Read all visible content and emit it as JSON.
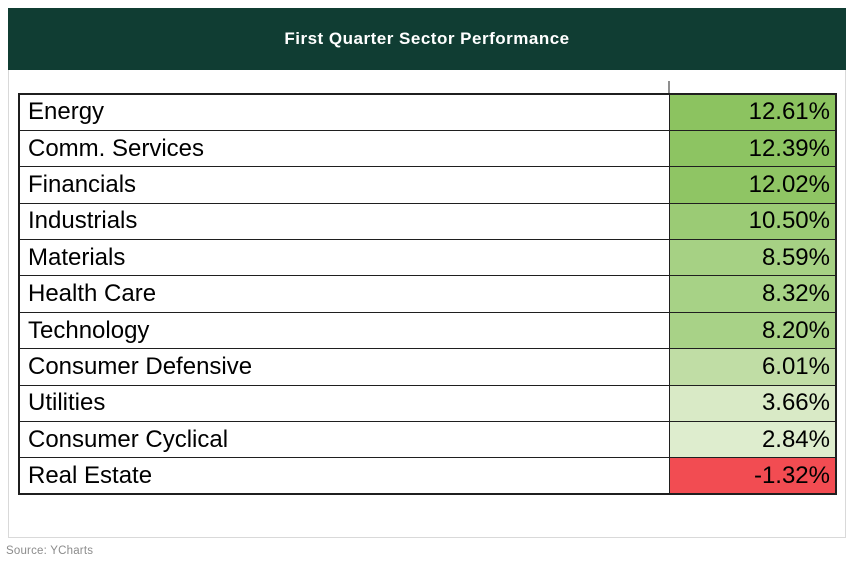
{
  "chart": {
    "title": "First Quarter Sector Performance",
    "source": "Source: YCharts"
  },
  "colors": {
    "header_bg": "#103d33",
    "title_text": "#ffffff",
    "frame_border": "#d9d9d9",
    "table_border": "#1f1f1f",
    "positive_strong": "#8cc360",
    "positive_weak": "#deedce",
    "negative": "#f24c52"
  },
  "chart_data": {
    "type": "table",
    "title": "First Quarter Sector Performance",
    "source": "Source: YCharts",
    "value_format": "percent",
    "color_scale": "green (high positive) to light green (low positive), red (negative)",
    "rows": [
      {
        "label": "Energy",
        "value": "12.61%",
        "value_num": 12.61,
        "cell_color": "#8cc360"
      },
      {
        "label": "Comm. Services",
        "value": "12.39%",
        "value_num": 12.39,
        "cell_color": "#8dc462"
      },
      {
        "label": "Financials",
        "value": "12.02%",
        "value_num": 12.02,
        "cell_color": "#8fc564"
      },
      {
        "label": "Industrials",
        "value": "10.50%",
        "value_num": 10.5,
        "cell_color": "#9bcb75"
      },
      {
        "label": "Materials",
        "value": "8.59%",
        "value_num": 8.59,
        "cell_color": "#a6d184"
      },
      {
        "label": "Health Care",
        "value": "8.32%",
        "value_num": 8.32,
        "cell_color": "#a7d286"
      },
      {
        "label": "Technology",
        "value": "8.20%",
        "value_num": 8.2,
        "cell_color": "#a8d287"
      },
      {
        "label": "Consumer Defensive",
        "value": "6.01%",
        "value_num": 6.01,
        "cell_color": "#c0dda5"
      },
      {
        "label": "Utilities",
        "value": "3.66%",
        "value_num": 3.66,
        "cell_color": "#d9eac6"
      },
      {
        "label": "Consumer Cyclical",
        "value": "2.84%",
        "value_num": 2.84,
        "cell_color": "#deedce"
      },
      {
        "label": "Real Estate",
        "value": "-1.32%",
        "value_num": -1.32,
        "cell_color": "#f24c52"
      }
    ]
  }
}
